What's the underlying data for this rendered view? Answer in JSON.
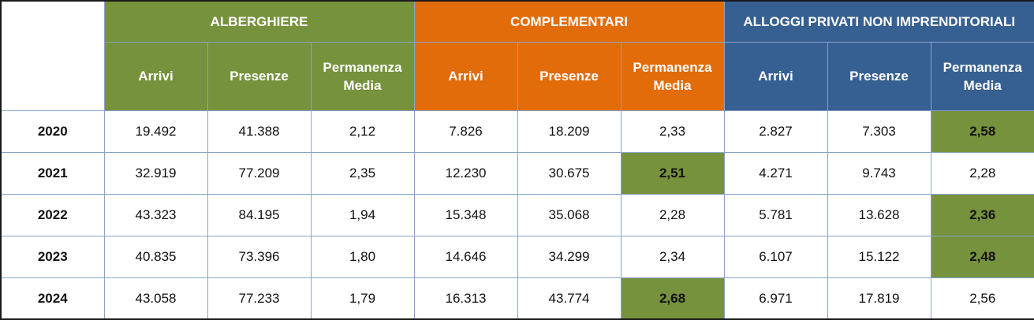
{
  "groups": [
    {
      "label": "ALBERGHIERE",
      "color": "#76923c"
    },
    {
      "label": "COMPLEMENTARI",
      "color": "#e36c0a"
    },
    {
      "label": "ALLOGGI PRIVATI NON IMPRENDITORIALI",
      "color": "#366092"
    }
  ],
  "subheaders": {
    "arrivi": "Arrivi",
    "presenze": "Presenze",
    "permanenza_line1": "Permanenza",
    "permanenza_line2": "Media"
  },
  "highlight_color": "#76923c",
  "rows": [
    {
      "year": "2020",
      "cells": [
        "19.492",
        "41.388",
        "2,12",
        "7.826",
        "18.209",
        "2,33",
        "2.827",
        "7.303",
        "2,58"
      ],
      "highlighted": [
        8
      ]
    },
    {
      "year": "2021",
      "cells": [
        "32.919",
        "77.209",
        "2,35",
        "12.230",
        "30.675",
        "2,51",
        "4.271",
        "9.743",
        "2,28"
      ],
      "highlighted": [
        5
      ]
    },
    {
      "year": "2022",
      "cells": [
        "43.323",
        "84.195",
        "1,94",
        "15.348",
        "35.068",
        "2,28",
        "5.781",
        "13.628",
        "2,36"
      ],
      "highlighted": [
        8
      ]
    },
    {
      "year": "2023",
      "cells": [
        "40.835",
        "73.396",
        "1,80",
        "14.646",
        "34.299",
        "2,34",
        "6.107",
        "15.122",
        "2,48"
      ],
      "highlighted": [
        8
      ]
    },
    {
      "year": "2024",
      "cells": [
        "43.058",
        "77.233",
        "1,79",
        "16.313",
        "43.774",
        "2,68",
        "6.971",
        "17.819",
        "2,56"
      ],
      "highlighted": [
        5
      ]
    }
  ]
}
